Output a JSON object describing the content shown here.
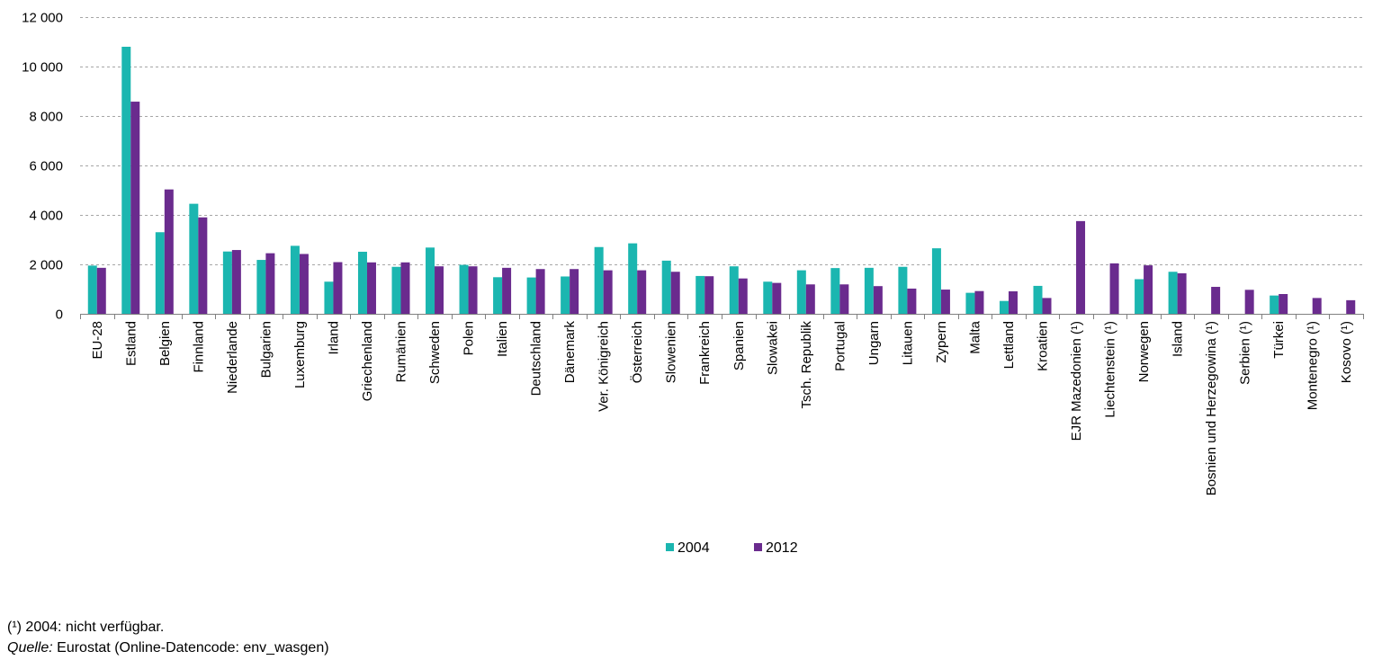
{
  "chart_data": {
    "type": "bar",
    "categories": [
      "EU-28",
      "Estland",
      "Belgien",
      "Finnland",
      "Niederlande",
      "Bulgarien",
      "Luxemburg",
      "Irland",
      "Griechenland",
      "Rumänien",
      "Schweden",
      "Polen",
      "Italien",
      "Deutschland",
      "Dänemark",
      "Ver. Königreich",
      "Österreich",
      "Slowenien",
      "Frankreich",
      "Spanien",
      "Slowakei",
      "Tsch. Republik",
      "Portugal",
      "Ungarn",
      "Litauen",
      "Zypern",
      "Malta",
      "Lettland",
      "Kroatien",
      "EJR Mazedonien (¹)",
      "Liechtenstein (¹)",
      "Norwegen",
      "Island",
      "Bosnien und Herzegowina (¹)",
      "Serbien (¹)",
      "Türkei",
      "Montenegro (¹)",
      "Kosovo (¹)"
    ],
    "series": [
      {
        "name": "2004",
        "color": "#1bb6b0",
        "values": [
          1950,
          10800,
          3300,
          4450,
          2520,
          2180,
          2750,
          1300,
          2510,
          1900,
          2680,
          1980,
          1480,
          1470,
          1510,
          2700,
          2850,
          2150,
          1530,
          1920,
          1300,
          1760,
          1850,
          1860,
          1900,
          2650,
          850,
          520,
          1130,
          null,
          null,
          1400,
          1700,
          null,
          null,
          740,
          null,
          null
        ]
      },
      {
        "name": "2012",
        "color": "#6a2b8e",
        "values": [
          1860,
          8580,
          5030,
          3900,
          2580,
          2450,
          2420,
          2090,
          2080,
          2080,
          1920,
          1920,
          1860,
          1810,
          1810,
          1760,
          1760,
          1700,
          1520,
          1430,
          1250,
          1190,
          1190,
          1120,
          1020,
          980,
          920,
          910,
          640,
          3750,
          2040,
          1960,
          1640,
          1090,
          970,
          800,
          640,
          550
        ]
      }
    ],
    "ylim": [
      0,
      12000
    ],
    "yticks": [
      0,
      2000,
      4000,
      6000,
      8000,
      10000,
      12000
    ],
    "ytick_labels": [
      "0",
      "2 000",
      "4 000",
      "6 000",
      "8 000",
      "10 000",
      "12 000"
    ],
    "grid": "horizontal-dashed",
    "legend": "bottom-center",
    "xlabel": "",
    "ylabel": "",
    "title": ""
  },
  "notes": {
    "footnote": "(¹) 2004: nicht verfügbar.",
    "source_label": "Quelle:",
    "source_text": "Eurostat (Online-Datencode: env_wasgen)"
  }
}
